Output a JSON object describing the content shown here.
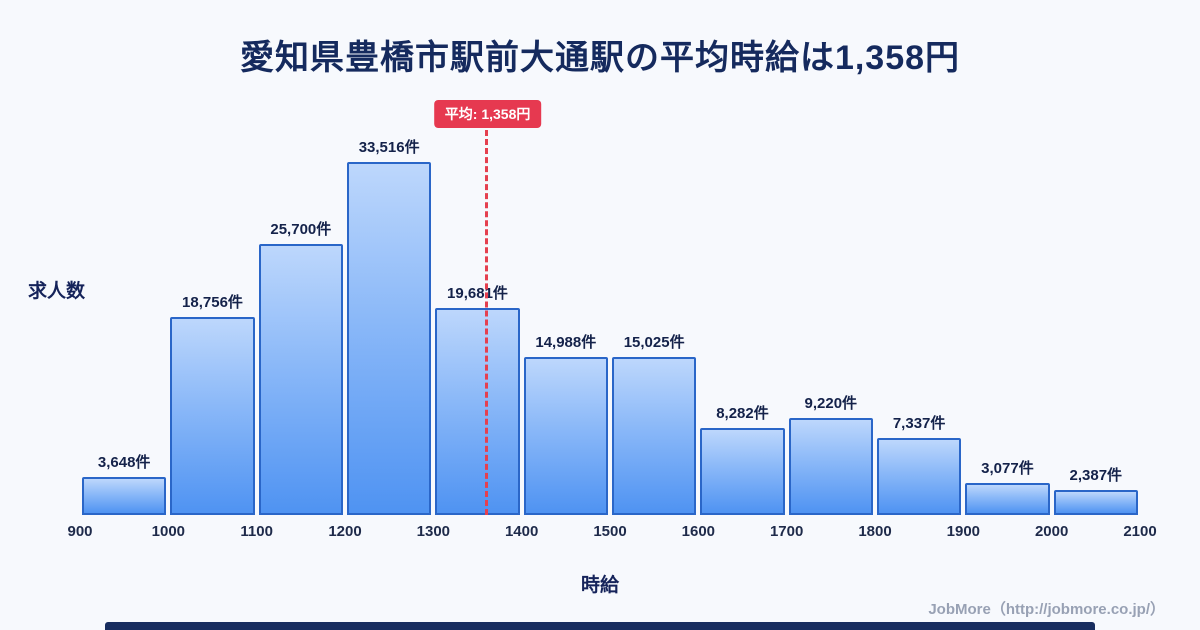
{
  "title": "愛知県豊橋市駅前大通駅の平均時給は1,358円",
  "average_badge": "平均: 1,358円",
  "footer": "JobMore（http://jobmore.co.jp/）",
  "colors": {
    "background": "#f7f9fd",
    "title_text": "#152a5e",
    "bar_fill_top": "#bdd7fc",
    "bar_fill_bottom": "#4f93f2",
    "bar_border": "#2a66c8",
    "average_red": "#e63950",
    "footer_text": "#98a1b4",
    "bottom_bar": "#182d5f"
  },
  "chart_data": {
    "type": "bar",
    "title": "愛知県豊橋市駅前大通駅の平均時給は1,358円",
    "xlabel": "時給",
    "ylabel": "求人数",
    "xlim": [
      900,
      2100
    ],
    "ylim": [
      0,
      33516
    ],
    "grid": false,
    "legend": "none",
    "x_ticks": [
      "900",
      "1000",
      "1100",
      "1200",
      "1300",
      "1400",
      "1500",
      "1600",
      "1700",
      "1800",
      "1900",
      "2000",
      "2100"
    ],
    "bin_edges": [
      900,
      1000,
      1100,
      1200,
      1300,
      1400,
      1500,
      1600,
      1700,
      1800,
      1900,
      2000,
      2100
    ],
    "values": [
      3648,
      18756,
      25700,
      33516,
      19681,
      14988,
      15025,
      8282,
      9220,
      7337,
      3077,
      2387
    ],
    "labels": [
      "3,648件",
      "18,756件",
      "25,700件",
      "33,516件",
      "19,681件",
      "14,988件",
      "15,025件",
      "8,282件",
      "9,220件",
      "7,337件",
      "3,077件",
      "2,387件"
    ],
    "average": 1358,
    "average_label": "平均: 1,358円",
    "annotation": "red dashed vertical line at average"
  }
}
